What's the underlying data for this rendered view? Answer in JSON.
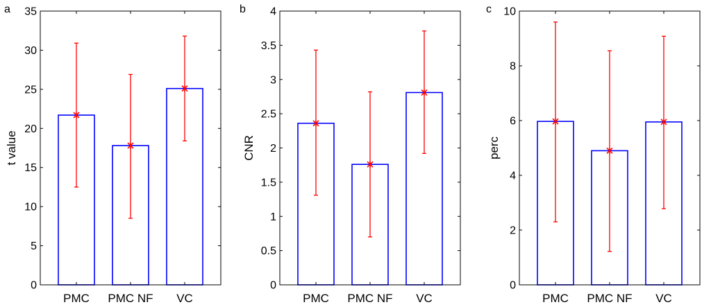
{
  "chart_data": [
    {
      "type": "bar",
      "panel_label": "a",
      "ylabel": "t value",
      "xlabel": "",
      "categories": [
        "PMC",
        "PMC NF",
        "VC"
      ],
      "values": [
        21.7,
        17.8,
        25.1
      ],
      "error_low": [
        12.5,
        8.5,
        18.4
      ],
      "error_high": [
        30.9,
        26.9,
        31.8
      ],
      "ylim": [
        0,
        35
      ],
      "yticks": [
        0,
        5,
        10,
        15,
        20,
        25,
        30,
        35
      ],
      "ytick_labels": [
        "0",
        "5",
        "10",
        "15",
        "20",
        "25",
        "30",
        "35"
      ],
      "grid": false,
      "bar_color": "#0000ff",
      "error_color": "#ff0000"
    },
    {
      "type": "bar",
      "panel_label": "b",
      "ylabel": "CNR",
      "xlabel": "",
      "categories": [
        "PMC",
        "PMC NF",
        "VC"
      ],
      "values": [
        2.36,
        1.76,
        2.81
      ],
      "error_low": [
        1.31,
        0.7,
        1.92
      ],
      "error_high": [
        3.43,
        2.82,
        3.71
      ],
      "ylim": [
        0,
        4
      ],
      "yticks": [
        0,
        0.5,
        1,
        1.5,
        2,
        2.5,
        3,
        3.5,
        4
      ],
      "ytick_labels": [
        "0",
        "0.5",
        "1",
        "1.5",
        "2",
        "2.5",
        "3",
        "3.5",
        "4"
      ],
      "grid": false,
      "bar_color": "#0000ff",
      "error_color": "#ff0000"
    },
    {
      "type": "bar",
      "panel_label": "c",
      "ylabel": "perc",
      "xlabel": "",
      "categories": [
        "PMC",
        "PMC NF",
        "VC"
      ],
      "values": [
        5.97,
        4.9,
        5.95
      ],
      "error_low": [
        2.3,
        1.22,
        2.78
      ],
      "error_high": [
        9.6,
        8.55,
        9.08
      ],
      "ylim": [
        0,
        10
      ],
      "yticks": [
        0,
        2,
        4,
        6,
        8,
        10
      ],
      "ytick_labels": [
        "0",
        "2",
        "4",
        "6",
        "8",
        "10"
      ],
      "grid": false,
      "bar_color": "#0000ff",
      "error_color": "#ff0000"
    }
  ]
}
